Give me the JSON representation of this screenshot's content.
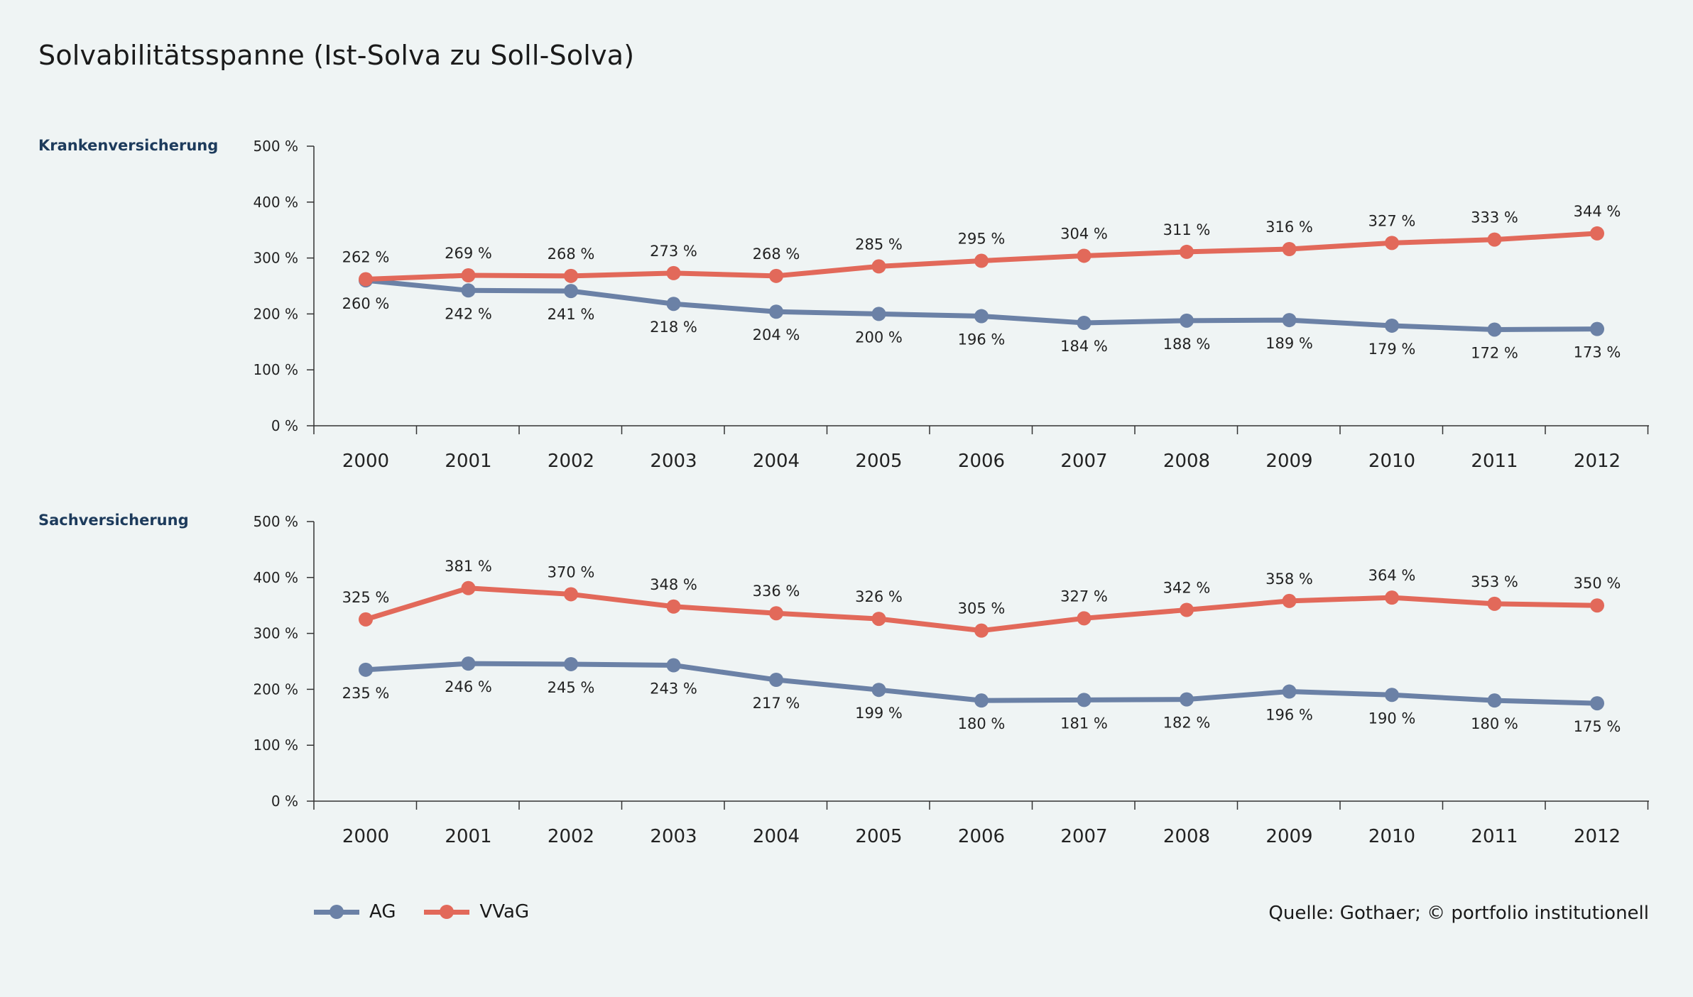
{
  "title": "Solvabilitätsspanne (Ist-Solva zu Soll-Solva)",
  "colors": {
    "AG": "#6b81a6",
    "VVaG": "#e2695a",
    "axis": "#333333"
  },
  "legend": [
    {
      "name": "AG",
      "color": "#6b81a6"
    },
    {
      "name": "VVaG",
      "color": "#e2695a"
    }
  ],
  "source": "Quelle: Gothaer; © portfolio institutionell",
  "chart_data": [
    {
      "type": "line",
      "panel_label": "Krankenversicherung",
      "categories": [
        "2000",
        "2001",
        "2002",
        "2003",
        "2004",
        "2005",
        "2006",
        "2007",
        "2008",
        "2009",
        "2010",
        "2011",
        "2012"
      ],
      "y_ticks": [
        "0 %",
        "100 %",
        "200 %",
        "300 %",
        "400 %",
        "500 %"
      ],
      "ylim": [
        0,
        500
      ],
      "grid": false,
      "legend_placement": "bottom-left",
      "series": [
        {
          "name": "AG",
          "values": [
            260,
            242,
            241,
            218,
            204,
            200,
            196,
            184,
            188,
            189,
            179,
            172,
            173
          ],
          "labels": [
            "260 %",
            "242 %",
            "241 %",
            "218 %",
            "204 %",
            "200 %",
            "196 %",
            "184 %",
            "188 %",
            "189 %",
            "179 %",
            "172 %",
            "173 %"
          ]
        },
        {
          "name": "VVaG",
          "values": [
            262,
            269,
            268,
            273,
            268,
            285,
            295,
            304,
            311,
            316,
            327,
            333,
            344
          ],
          "labels": [
            "262 %",
            "269 %",
            "268 %",
            "273 %",
            "268 %",
            "285 %",
            "295 %",
            "304 %",
            "311 %",
            "316 %",
            "327 %",
            "333 %",
            "344 %"
          ]
        }
      ]
    },
    {
      "type": "line",
      "panel_label": "Sachversicherung",
      "categories": [
        "2000",
        "2001",
        "2002",
        "2003",
        "2004",
        "2005",
        "2006",
        "2007",
        "2008",
        "2009",
        "2010",
        "2011",
        "2012"
      ],
      "y_ticks": [
        "0 %",
        "100 %",
        "200 %",
        "300 %",
        "400 %",
        "500 %"
      ],
      "ylim": [
        0,
        500
      ],
      "grid": false,
      "legend_placement": "bottom-left",
      "series": [
        {
          "name": "AG",
          "values": [
            235,
            246,
            245,
            243,
            217,
            199,
            180,
            181,
            182,
            196,
            190,
            180,
            175
          ],
          "labels": [
            "235 %",
            "246 %",
            "245 %",
            "243 %",
            "217 %",
            "199 %",
            "180 %",
            "181 %",
            "182 %",
            "196 %",
            "190 %",
            "180 %",
            "175 %"
          ]
        },
        {
          "name": "VVaG",
          "values": [
            325,
            381,
            370,
            348,
            336,
            326,
            305,
            327,
            342,
            358,
            364,
            353,
            350
          ],
          "labels": [
            "325 %",
            "381 %",
            "370 %",
            "348 %",
            "336 %",
            "326 %",
            "305 %",
            "327 %",
            "342 %",
            "358 %",
            "364 %",
            "353 %",
            "350 %"
          ]
        }
      ]
    }
  ]
}
